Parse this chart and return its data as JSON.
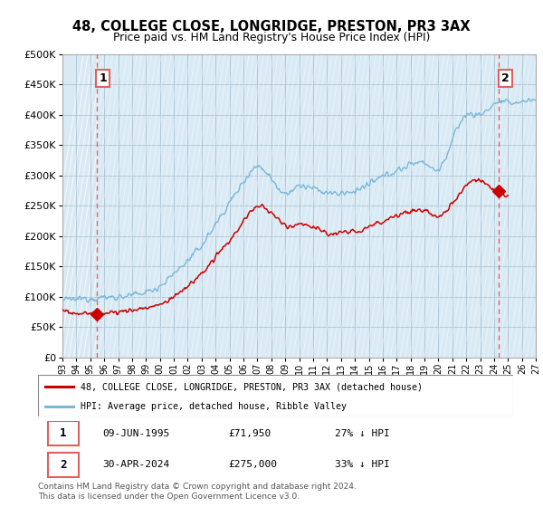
{
  "title": "48, COLLEGE CLOSE, LONGRIDGE, PRESTON, PR3 3AX",
  "subtitle": "Price paid vs. HM Land Registry's House Price Index (HPI)",
  "ylim": [
    0,
    500000
  ],
  "yticks": [
    0,
    50000,
    100000,
    150000,
    200000,
    250000,
    300000,
    350000,
    400000,
    450000,
    500000
  ],
  "ytick_labels": [
    "£0",
    "£50K",
    "£100K",
    "£150K",
    "£200K",
    "£250K",
    "£300K",
    "£350K",
    "£400K",
    "£450K",
    "£500K"
  ],
  "hpi_color": "#7ab8d9",
  "price_color": "#cc0000",
  "dashed_color": "#e06060",
  "hatch_color": "#c8dce8",
  "bg_color": "#daeaf4",
  "grid_color": "#b8ccd8",
  "point1_x": 1995.44,
  "point1_y": 71950,
  "point2_x": 2024.33,
  "point2_y": 275000,
  "legend_line1": "48, COLLEGE CLOSE, LONGRIDGE, PRESTON, PR3 3AX (detached house)",
  "legend_line2": "HPI: Average price, detached house, Ribble Valley",
  "table_row1": [
    "1",
    "09-JUN-1995",
    "£71,950",
    "27% ↓ HPI"
  ],
  "table_row2": [
    "2",
    "30-APR-2024",
    "£275,000",
    "33% ↓ HPI"
  ],
  "footer": "Contains HM Land Registry data © Crown copyright and database right 2024.\nThis data is licensed under the Open Government Licence v3.0.",
  "xmin": 1993,
  "xmax": 2027,
  "xtick_years": [
    1993,
    1994,
    1995,
    1996,
    1997,
    1998,
    1999,
    2000,
    2001,
    2002,
    2003,
    2004,
    2005,
    2006,
    2007,
    2008,
    2009,
    2010,
    2011,
    2012,
    2013,
    2014,
    2015,
    2016,
    2017,
    2018,
    2019,
    2020,
    2021,
    2022,
    2023,
    2024,
    2025,
    2026,
    2027
  ]
}
